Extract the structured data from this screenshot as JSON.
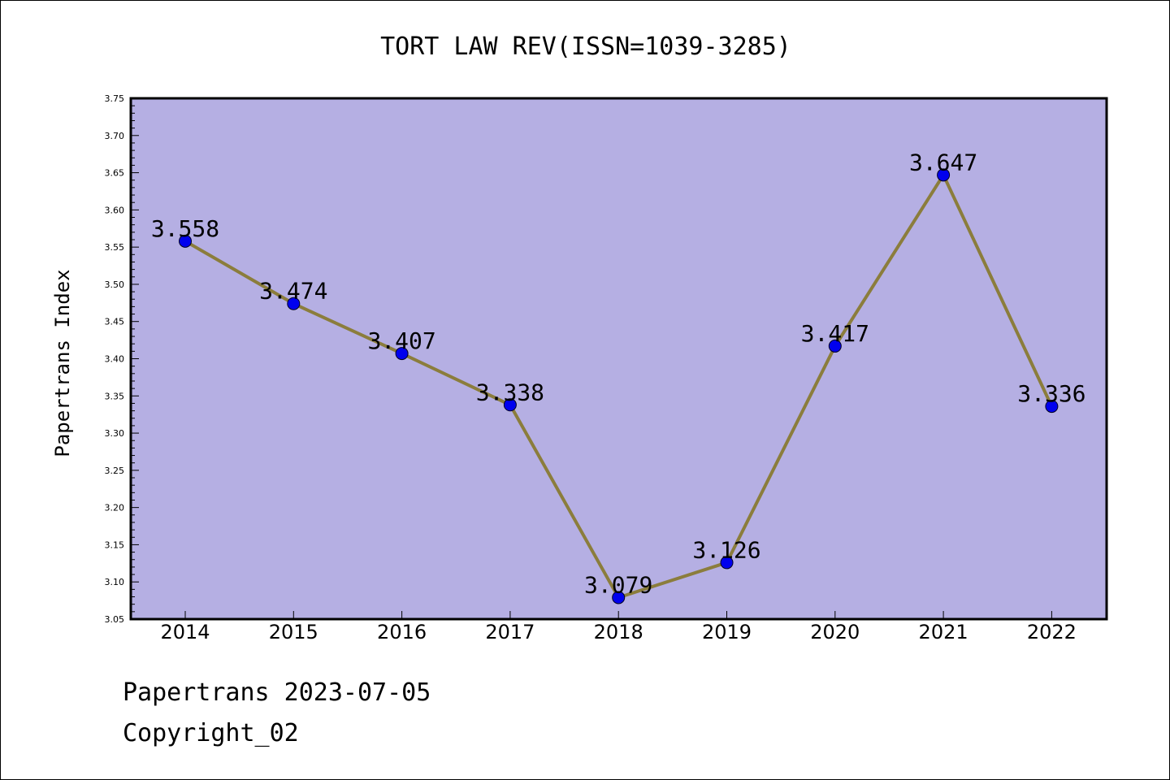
{
  "chart_data": {
    "type": "line",
    "title": "TORT LAW REV(ISSN=1039-3285)",
    "xlabel": "",
    "ylabel": "Papertrans Index",
    "categories": [
      "2014",
      "2015",
      "2016",
      "2017",
      "2018",
      "2019",
      "2020",
      "2021",
      "2022"
    ],
    "values": [
      3.558,
      3.474,
      3.407,
      3.338,
      3.079,
      3.126,
      3.417,
      3.647,
      3.336
    ],
    "data_labels": [
      "3.558",
      "3.474",
      "3.407",
      "3.338",
      "3.079",
      "3.126",
      "3.417",
      "3.647",
      "3.336"
    ],
    "ylim": [
      3.05,
      3.75
    ],
    "yticks": [
      "3.05",
      "3.10",
      "3.15",
      "3.20",
      "3.25",
      "3.30",
      "3.35",
      "3.40",
      "3.45",
      "3.50",
      "3.55",
      "3.60",
      "3.65",
      "3.70",
      "3.75"
    ],
    "grid": false,
    "legend": "none",
    "colors": {
      "plot_background": "#b5afe3",
      "line": "#8b7d3c",
      "marker": "#0000ee",
      "axis": "#000000"
    }
  },
  "footer": {
    "line1": "Papertrans 2023-07-05",
    "line2": "Copyright_02"
  }
}
